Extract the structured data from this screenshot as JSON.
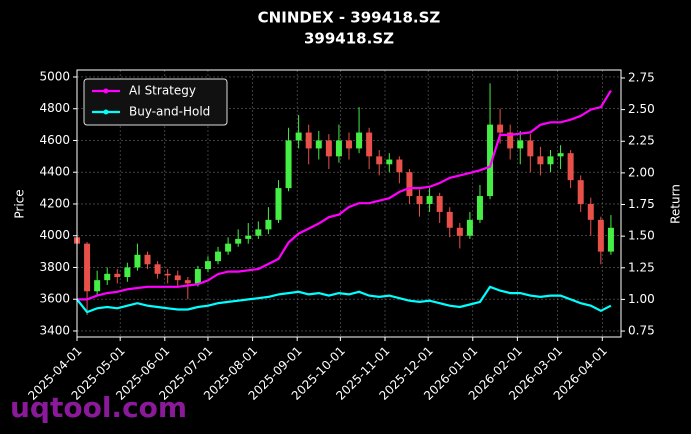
{
  "chart_data": {
    "type": "candlestick",
    "title": "CNINDEX - 399418.SZ",
    "subtitle": "399418.SZ",
    "ylabel": "Price",
    "y2label": "Return",
    "x": [
      "2025-04-01",
      "2025-04-08",
      "2025-04-15",
      "2025-04-22",
      "2025-04-29",
      "2025-05-06",
      "2025-05-13",
      "2025-05-20",
      "2025-05-27",
      "2025-06-03",
      "2025-06-10",
      "2025-06-17",
      "2025-06-24",
      "2025-07-01",
      "2025-07-08",
      "2025-07-15",
      "2025-07-22",
      "2025-07-29",
      "2025-08-05",
      "2025-08-12",
      "2025-08-19",
      "2025-08-26",
      "2025-09-02",
      "2025-09-09",
      "2025-09-16",
      "2025-09-23",
      "2025-09-30",
      "2025-10-07",
      "2025-10-14",
      "2025-10-21",
      "2025-10-28",
      "2025-11-04",
      "2025-11-11",
      "2025-11-18",
      "2025-11-25",
      "2025-12-02",
      "2025-12-09",
      "2025-12-16",
      "2025-12-23",
      "2025-12-30",
      "2026-01-06",
      "2026-01-13",
      "2026-01-20",
      "2026-01-27",
      "2026-02-03",
      "2026-02-10",
      "2026-02-17",
      "2026-02-24",
      "2026-03-03",
      "2026-03-10",
      "2026-03-17",
      "2026-03-24",
      "2026-03-31",
      "2026-04-07"
    ],
    "open": [
      3990,
      3950,
      3650,
      3720,
      3760,
      3740,
      3800,
      3880,
      3820,
      3760,
      3750,
      3720,
      3700,
      3790,
      3840,
      3900,
      3950,
      3980,
      4000,
      4040,
      4100,
      4300,
      4600,
      4650,
      4550,
      4600,
      4500,
      4600,
      4550,
      4650,
      4500,
      4450,
      4480,
      4400,
      4250,
      4200,
      4250,
      4150,
      4050,
      4000,
      4100,
      4250,
      4700,
      4650,
      4550,
      4600,
      4500,
      4450,
      4500,
      4520,
      4350,
      4200,
      4100,
      3900
    ],
    "high": [
      4020,
      3960,
      3780,
      3800,
      3790,
      3830,
      3950,
      3900,
      3840,
      3790,
      3780,
      3740,
      3810,
      3870,
      3930,
      3990,
      4040,
      4080,
      4090,
      4180,
      4350,
      4680,
      4760,
      4700,
      4660,
      4640,
      4700,
      4650,
      4810,
      4680,
      4540,
      4520,
      4500,
      4420,
      4290,
      4300,
      4270,
      4180,
      4080,
      4150,
      4320,
      4960,
      4800,
      4700,
      4660,
      4640,
      4560,
      4540,
      4570,
      4540,
      4380,
      4240,
      4120,
      4130
    ],
    "low": [
      3920,
      3500,
      3620,
      3690,
      3700,
      3710,
      3780,
      3790,
      3730,
      3700,
      3680,
      3600,
      3680,
      3770,
      3820,
      3880,
      3930,
      3950,
      3980,
      4010,
      4080,
      4280,
      4550,
      4450,
      4480,
      4420,
      4460,
      4480,
      4520,
      4420,
      4380,
      4400,
      4330,
      4200,
      4120,
      4150,
      4080,
      3990,
      3920,
      3980,
      4080,
      4230,
      4580,
      4480,
      4450,
      4400,
      4380,
      4400,
      4420,
      4300,
      4150,
      4000,
      3820,
      3880
    ],
    "close": [
      3950,
      3650,
      3720,
      3760,
      3740,
      3800,
      3880,
      3820,
      3760,
      3750,
      3720,
      3700,
      3790,
      3840,
      3900,
      3950,
      3980,
      4000,
      4040,
      4100,
      4300,
      4600,
      4650,
      4550,
      4600,
      4500,
      4600,
      4550,
      4650,
      4500,
      4450,
      4480,
      4400,
      4250,
      4200,
      4250,
      4150,
      4050,
      4000,
      4100,
      4250,
      4700,
      4650,
      4550,
      4600,
      4500,
      4450,
      4500,
      4520,
      4350,
      4200,
      4100,
      3900,
      4050
    ],
    "up_color": "#44ee44",
    "down_color": "#e8504a",
    "series": [
      {
        "name": "AI Strategy",
        "color": "#ff00ff",
        "axis": "y2",
        "values": [
          1.0,
          1.0,
          1.03,
          1.05,
          1.06,
          1.08,
          1.09,
          1.1,
          1.1,
          1.1,
          1.1,
          1.11,
          1.12,
          1.15,
          1.2,
          1.22,
          1.22,
          1.23,
          1.24,
          1.28,
          1.32,
          1.45,
          1.52,
          1.56,
          1.6,
          1.65,
          1.67,
          1.73,
          1.76,
          1.76,
          1.78,
          1.8,
          1.85,
          1.88,
          1.88,
          1.89,
          1.92,
          1.96,
          1.98,
          2.0,
          2.02,
          2.05,
          2.3,
          2.3,
          2.31,
          2.32,
          2.38,
          2.4,
          2.4,
          2.42,
          2.45,
          2.5,
          2.52,
          2.65
        ]
      },
      {
        "name": "Buy-and-Hold",
        "color": "#00ffff",
        "axis": "y2",
        "values": [
          1.0,
          0.9,
          0.93,
          0.94,
          0.93,
          0.95,
          0.97,
          0.95,
          0.94,
          0.93,
          0.92,
          0.92,
          0.94,
          0.95,
          0.97,
          0.98,
          0.99,
          1.0,
          1.01,
          1.02,
          1.04,
          1.05,
          1.06,
          1.04,
          1.05,
          1.03,
          1.05,
          1.04,
          1.06,
          1.03,
          1.02,
          1.03,
          1.01,
          0.99,
          0.98,
          0.99,
          0.97,
          0.95,
          0.94,
          0.96,
          0.98,
          1.1,
          1.07,
          1.05,
          1.05,
          1.03,
          1.02,
          1.03,
          1.03,
          1.0,
          0.97,
          0.95,
          0.91,
          0.95
        ]
      }
    ],
    "xlim": [
      "2025-04-01",
      "2026-04-14"
    ],
    "xticks": [
      "2025-04-01",
      "2025-05-01",
      "2025-06-01",
      "2025-07-01",
      "2025-08-01",
      "2025-09-01",
      "2025-10-01",
      "2025-11-01",
      "2025-12-01",
      "2026-01-01",
      "2026-02-01",
      "2026-03-01",
      "2026-04-01"
    ],
    "ylim": [
      3362,
      5044
    ],
    "yticks": [
      3400,
      3600,
      3800,
      4000,
      4200,
      4400,
      4600,
      4800,
      5000
    ],
    "y2lim": [
      0.703,
      2.813
    ],
    "y2ticks": [
      0.75,
      {
        "value": 1,
        "label": "1.00"
      },
      1.25,
      {
        "value": 1.5,
        "label": "1.50"
      },
      1.75,
      {
        "value": 2,
        "label": "2.00"
      },
      2.25,
      {
        "value": 2.5,
        "label": "2.50"
      },
      2.75
    ],
    "grid": true,
    "legend": "upper left"
  },
  "watermark": "uqtool.com"
}
